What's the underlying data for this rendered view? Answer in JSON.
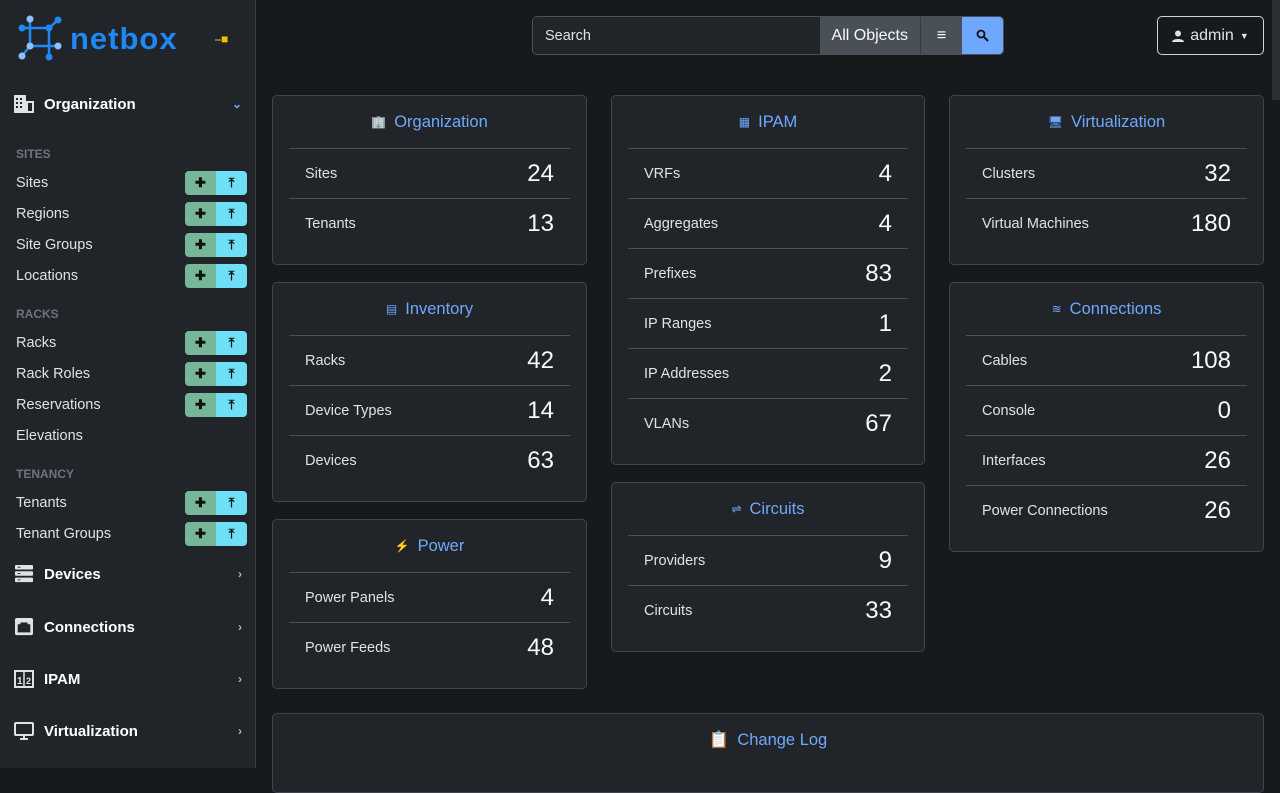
{
  "brand": {
    "name": "netbox",
    "accent": "#1e88f5"
  },
  "sidebar": {
    "menus": [
      {
        "label": "Organization",
        "icon": "building-icon",
        "open": true
      },
      {
        "label": "Devices",
        "icon": "server-icon"
      },
      {
        "label": "Connections",
        "icon": "ethernet-icon"
      },
      {
        "label": "IPAM",
        "icon": "ip-icon"
      },
      {
        "label": "Virtualization",
        "icon": "monitor-icon"
      }
    ],
    "sections": [
      {
        "label": "SITES"
      },
      {
        "label": "RACKS"
      },
      {
        "label": "TENANCY"
      }
    ],
    "items": [
      {
        "label": "Sites",
        "buttons": true
      },
      {
        "label": "Regions",
        "buttons": true
      },
      {
        "label": "Site Groups",
        "buttons": true
      },
      {
        "label": "Locations",
        "buttons": true
      },
      {
        "label": "Racks",
        "buttons": true
      },
      {
        "label": "Rack Roles",
        "buttons": true
      },
      {
        "label": "Reservations",
        "buttons": true
      },
      {
        "label": "Elevations",
        "buttons": false
      },
      {
        "label": "Tenants",
        "buttons": true
      },
      {
        "label": "Tenant Groups",
        "buttons": true
      }
    ]
  },
  "search": {
    "placeholder": "Search",
    "scope": "All Objects"
  },
  "user": {
    "name": "admin"
  },
  "cards": {
    "organization": {
      "title": "Organization",
      "rows": [
        {
          "label": "Sites",
          "value": "24"
        },
        {
          "label": "Tenants",
          "value": "13"
        }
      ]
    },
    "inventory": {
      "title": "Inventory",
      "rows": [
        {
          "label": "Racks",
          "value": "42"
        },
        {
          "label": "Device Types",
          "value": "14"
        },
        {
          "label": "Devices",
          "value": "63"
        }
      ]
    },
    "power": {
      "title": "Power",
      "rows": [
        {
          "label": "Power Panels",
          "value": "4"
        },
        {
          "label": "Power Feeds",
          "value": "48"
        }
      ]
    },
    "ipam": {
      "title": "IPAM",
      "rows": [
        {
          "label": "VRFs",
          "value": "4"
        },
        {
          "label": "Aggregates",
          "value": "4"
        },
        {
          "label": "Prefixes",
          "value": "83"
        },
        {
          "label": "IP Ranges",
          "value": "1"
        },
        {
          "label": "IP Addresses",
          "value": "2"
        },
        {
          "label": "VLANs",
          "value": "67"
        }
      ]
    },
    "circuits": {
      "title": "Circuits",
      "rows": [
        {
          "label": "Providers",
          "value": "9"
        },
        {
          "label": "Circuits",
          "value": "33"
        }
      ]
    },
    "virtualization": {
      "title": "Virtualization",
      "rows": [
        {
          "label": "Clusters",
          "value": "32"
        },
        {
          "label": "Virtual Machines",
          "value": "180"
        }
      ]
    },
    "connections": {
      "title": "Connections",
      "rows": [
        {
          "label": "Cables",
          "value": "108"
        },
        {
          "label": "Console",
          "value": "0"
        },
        {
          "label": "Interfaces",
          "value": "26"
        },
        {
          "label": "Power Connections",
          "value": "26"
        }
      ]
    },
    "changelog": {
      "title": "Change Log"
    }
  }
}
